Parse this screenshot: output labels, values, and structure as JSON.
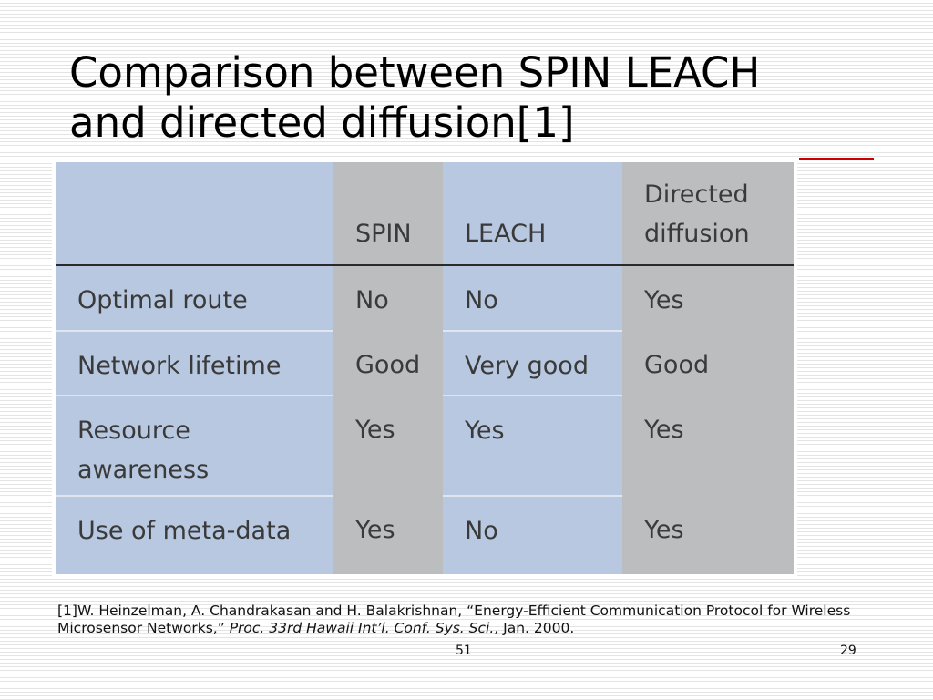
{
  "slide": {
    "title_line1": "Comparison between SPIN LEACH",
    "title_line2": "and directed diffusion[1]"
  },
  "table": {
    "columns": [
      "",
      "SPIN",
      "LEACH",
      "Directed diffusion"
    ],
    "column_header_lines": {
      "directed_line1": "Directed",
      "directed_line2": "diffusion"
    },
    "rows": [
      {
        "label": "Optimal route",
        "values": [
          "No",
          "No",
          "Yes"
        ]
      },
      {
        "label": "Network lifetime",
        "values": [
          "Good",
          "Very good",
          "Good"
        ]
      },
      {
        "label_line1": "Resource",
        "label_line2": "awareness",
        "label": "Resource awareness",
        "values": [
          "Yes",
          "Yes",
          "Yes"
        ]
      },
      {
        "label": "Use of meta-data",
        "values": [
          "Yes",
          "No",
          "Yes"
        ]
      }
    ],
    "colors": {
      "blue_cell": "#b8c8e0",
      "gray_cell": "#bcbdbf"
    }
  },
  "reference": {
    "part1": "[1]W. Heinzelman, A. Chandrakasan and H. Balakrishnan, “Energy-Efficient Communication Protocol for Wireless Microsensor Networks,” ",
    "part2_italic": "Proc. 33rd Hawaii Int’l. Conf. Sys. Sci.",
    "part3": ", Jan. 2000."
  },
  "footer": {
    "slide_number": "51",
    "page_number": "29"
  },
  "colors": {
    "accent_line": "#cc0000"
  }
}
